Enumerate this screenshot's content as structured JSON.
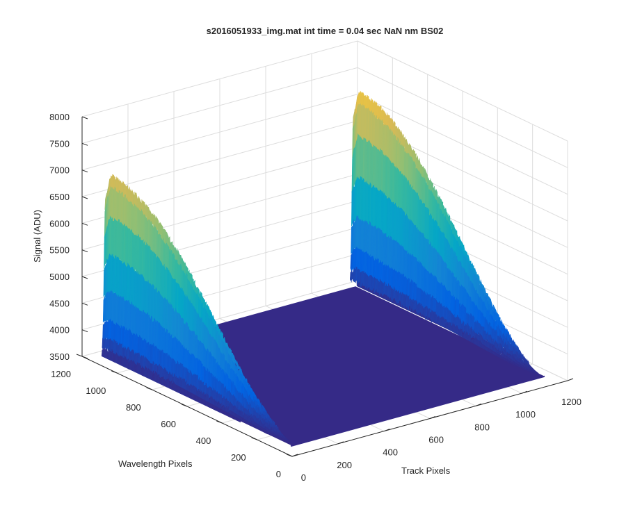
{
  "chart_data": {
    "type": "surface",
    "title": "s2016051933_img.mat int time = 0.04 sec  NaN nm BS02",
    "xlabel": "Track Pixels",
    "ylabel": "Wavelength Pixels",
    "zlabel": "Signal (ADU)",
    "xlim": [
      0,
      1200
    ],
    "ylim": [
      0,
      1200
    ],
    "zlim": [
      3500,
      8000
    ],
    "xticks": [
      "0",
      "200",
      "400",
      "600",
      "800",
      "1000",
      "1200"
    ],
    "yticks": [
      "0",
      "200",
      "400",
      "600",
      "800",
      "1000",
      "1200"
    ],
    "zticks": [
      "3500",
      "4000",
      "4500",
      "5000",
      "5500",
      "6000",
      "6500",
      "7000",
      "7500",
      "8000"
    ],
    "grid": true,
    "colormap": [
      "#352a87",
      "#0363e1",
      "#1485d4",
      "#06a7c6",
      "#38b99e",
      "#92bf73",
      "#d9ba56",
      "#fcce2e",
      "#f9fb0e"
    ],
    "baseline": 3700,
    "peaks": [
      {
        "track_center": 10,
        "track_width": 8,
        "peak_wavelength": 1050,
        "peak_signal": 7100
      },
      {
        "track_center": 1090,
        "track_width": 8,
        "peak_wavelength": 1050,
        "peak_signal": 7400
      }
    ],
    "series": [
      {
        "track": 10,
        "wavelength": [
          0,
          200,
          400,
          600,
          800,
          1000,
          1050,
          1100
        ],
        "signal": [
          3700,
          3900,
          4500,
          5400,
          6300,
          6950,
          7100,
          6800
        ]
      },
      {
        "track": 1090,
        "wavelength": [
          0,
          200,
          400,
          600,
          800,
          1000,
          1050,
          1100
        ],
        "signal": [
          3700,
          3950,
          4600,
          5500,
          6500,
          7200,
          7400,
          7100
        ]
      }
    ]
  }
}
